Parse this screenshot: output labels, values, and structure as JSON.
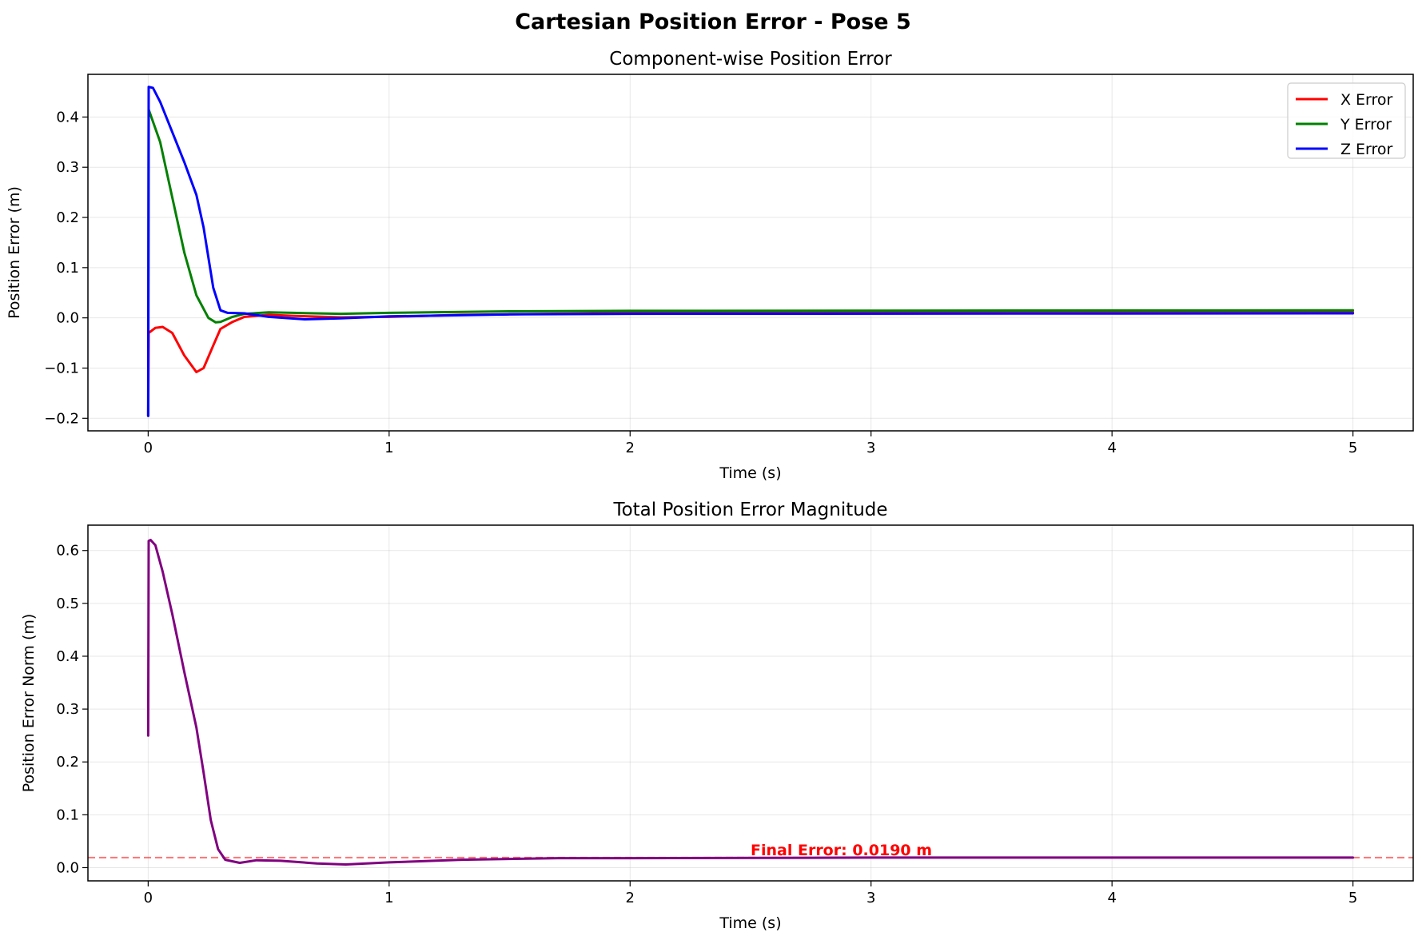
{
  "figure": {
    "title": "Cartesian Position Error - Pose 5"
  },
  "chart_data": [
    {
      "type": "line",
      "title": "Component-wise Position Error",
      "xlabel": "Time (s)",
      "ylabel": "Position Error (m)",
      "xlim": [
        -0.25,
        5.25
      ],
      "ylim": [
        -0.225,
        0.485
      ],
      "xticks": [
        0,
        1,
        2,
        3,
        4,
        5
      ],
      "xtick_labels": [
        "0",
        "1",
        "2",
        "3",
        "4",
        "5"
      ],
      "yticks": [
        -0.2,
        -0.1,
        0.0,
        0.1,
        0.2,
        0.3,
        0.4
      ],
      "ytick_labels": [
        "−0.2",
        "−0.1",
        "0.0",
        "0.1",
        "0.2",
        "0.3",
        "0.4"
      ],
      "grid": true,
      "legend_position": "top-right",
      "series": [
        {
          "name": "X Error",
          "color": "#ff0000",
          "points": [
            [
              0.0,
              -0.195
            ],
            [
              0.002,
              -0.03
            ],
            [
              0.03,
              -0.02
            ],
            [
              0.06,
              -0.018
            ],
            [
              0.1,
              -0.03
            ],
            [
              0.15,
              -0.075
            ],
            [
              0.2,
              -0.108
            ],
            [
              0.23,
              -0.1
            ],
            [
              0.27,
              -0.055
            ],
            [
              0.3,
              -0.022
            ],
            [
              0.35,
              -0.008
            ],
            [
              0.4,
              0.002
            ],
            [
              0.5,
              0.006
            ],
            [
              0.6,
              0.004
            ],
            [
              0.8,
              0.001
            ],
            [
              1.0,
              0.002
            ],
            [
              1.3,
              0.006
            ],
            [
              2.0,
              0.01
            ],
            [
              3.0,
              0.011
            ],
            [
              5.0,
              0.011
            ]
          ]
        },
        {
          "name": "Y Error",
          "color": "#008000",
          "points": [
            [
              0.0,
              -0.195
            ],
            [
              0.002,
              0.415
            ],
            [
              0.05,
              0.35
            ],
            [
              0.1,
              0.24
            ],
            [
              0.15,
              0.13
            ],
            [
              0.2,
              0.045
            ],
            [
              0.25,
              0.0
            ],
            [
              0.28,
              -0.009
            ],
            [
              0.3,
              -0.008
            ],
            [
              0.35,
              0.002
            ],
            [
              0.4,
              0.008
            ],
            [
              0.5,
              0.011
            ],
            [
              0.6,
              0.01
            ],
            [
              0.8,
              0.008
            ],
            [
              1.0,
              0.01
            ],
            [
              1.5,
              0.013
            ],
            [
              2.0,
              0.014
            ],
            [
              5.0,
              0.015
            ]
          ]
        },
        {
          "name": "Z Error",
          "color": "#0000ff",
          "points": [
            [
              0.0,
              -0.195
            ],
            [
              0.002,
              0.46
            ],
            [
              0.02,
              0.458
            ],
            [
              0.05,
              0.43
            ],
            [
              0.1,
              0.37
            ],
            [
              0.15,
              0.31
            ],
            [
              0.2,
              0.245
            ],
            [
              0.23,
              0.18
            ],
            [
              0.27,
              0.06
            ],
            [
              0.3,
              0.015
            ],
            [
              0.33,
              0.01
            ],
            [
              0.4,
              0.009
            ],
            [
              0.5,
              0.002
            ],
            [
              0.65,
              -0.003
            ],
            [
              0.8,
              -0.001
            ],
            [
              1.0,
              0.003
            ],
            [
              1.5,
              0.007
            ],
            [
              2.0,
              0.008
            ],
            [
              5.0,
              0.009
            ]
          ]
        }
      ]
    },
    {
      "type": "line",
      "title": "Total Position Error Magnitude",
      "xlabel": "Time (s)",
      "ylabel": "Position Error Norm (m)",
      "xlim": [
        -0.25,
        5.25
      ],
      "ylim": [
        -0.025,
        0.648
      ],
      "xticks": [
        0,
        1,
        2,
        3,
        4,
        5
      ],
      "xtick_labels": [
        "0",
        "1",
        "2",
        "3",
        "4",
        "5"
      ],
      "yticks": [
        0.0,
        0.1,
        0.2,
        0.3,
        0.4,
        0.5,
        0.6
      ],
      "ytick_labels": [
        "0.0",
        "0.1",
        "0.2",
        "0.3",
        "0.4",
        "0.5",
        "0.6"
      ],
      "grid": true,
      "reference_line": {
        "y": 0.019,
        "color": "#ff0000",
        "style": "dashed"
      },
      "annotation": {
        "text": "Final Error: 0.0190 m",
        "x": 2.5,
        "y": 0.019,
        "color": "#ff0000"
      },
      "series": [
        {
          "name": "",
          "color": "#800080",
          "points": [
            [
              0.0,
              0.25
            ],
            [
              0.002,
              0.618
            ],
            [
              0.01,
              0.62
            ],
            [
              0.03,
              0.61
            ],
            [
              0.06,
              0.56
            ],
            [
              0.1,
              0.48
            ],
            [
              0.15,
              0.37
            ],
            [
              0.2,
              0.265
            ],
            [
              0.23,
              0.18
            ],
            [
              0.26,
              0.09
            ],
            [
              0.29,
              0.035
            ],
            [
              0.32,
              0.015
            ],
            [
              0.38,
              0.009
            ],
            [
              0.45,
              0.014
            ],
            [
              0.55,
              0.013
            ],
            [
              0.7,
              0.008
            ],
            [
              0.82,
              0.006
            ],
            [
              1.0,
              0.01
            ],
            [
              1.3,
              0.015
            ],
            [
              1.7,
              0.018
            ],
            [
              2.0,
              0.018
            ],
            [
              3.0,
              0.019
            ],
            [
              5.0,
              0.019
            ]
          ]
        }
      ]
    }
  ]
}
